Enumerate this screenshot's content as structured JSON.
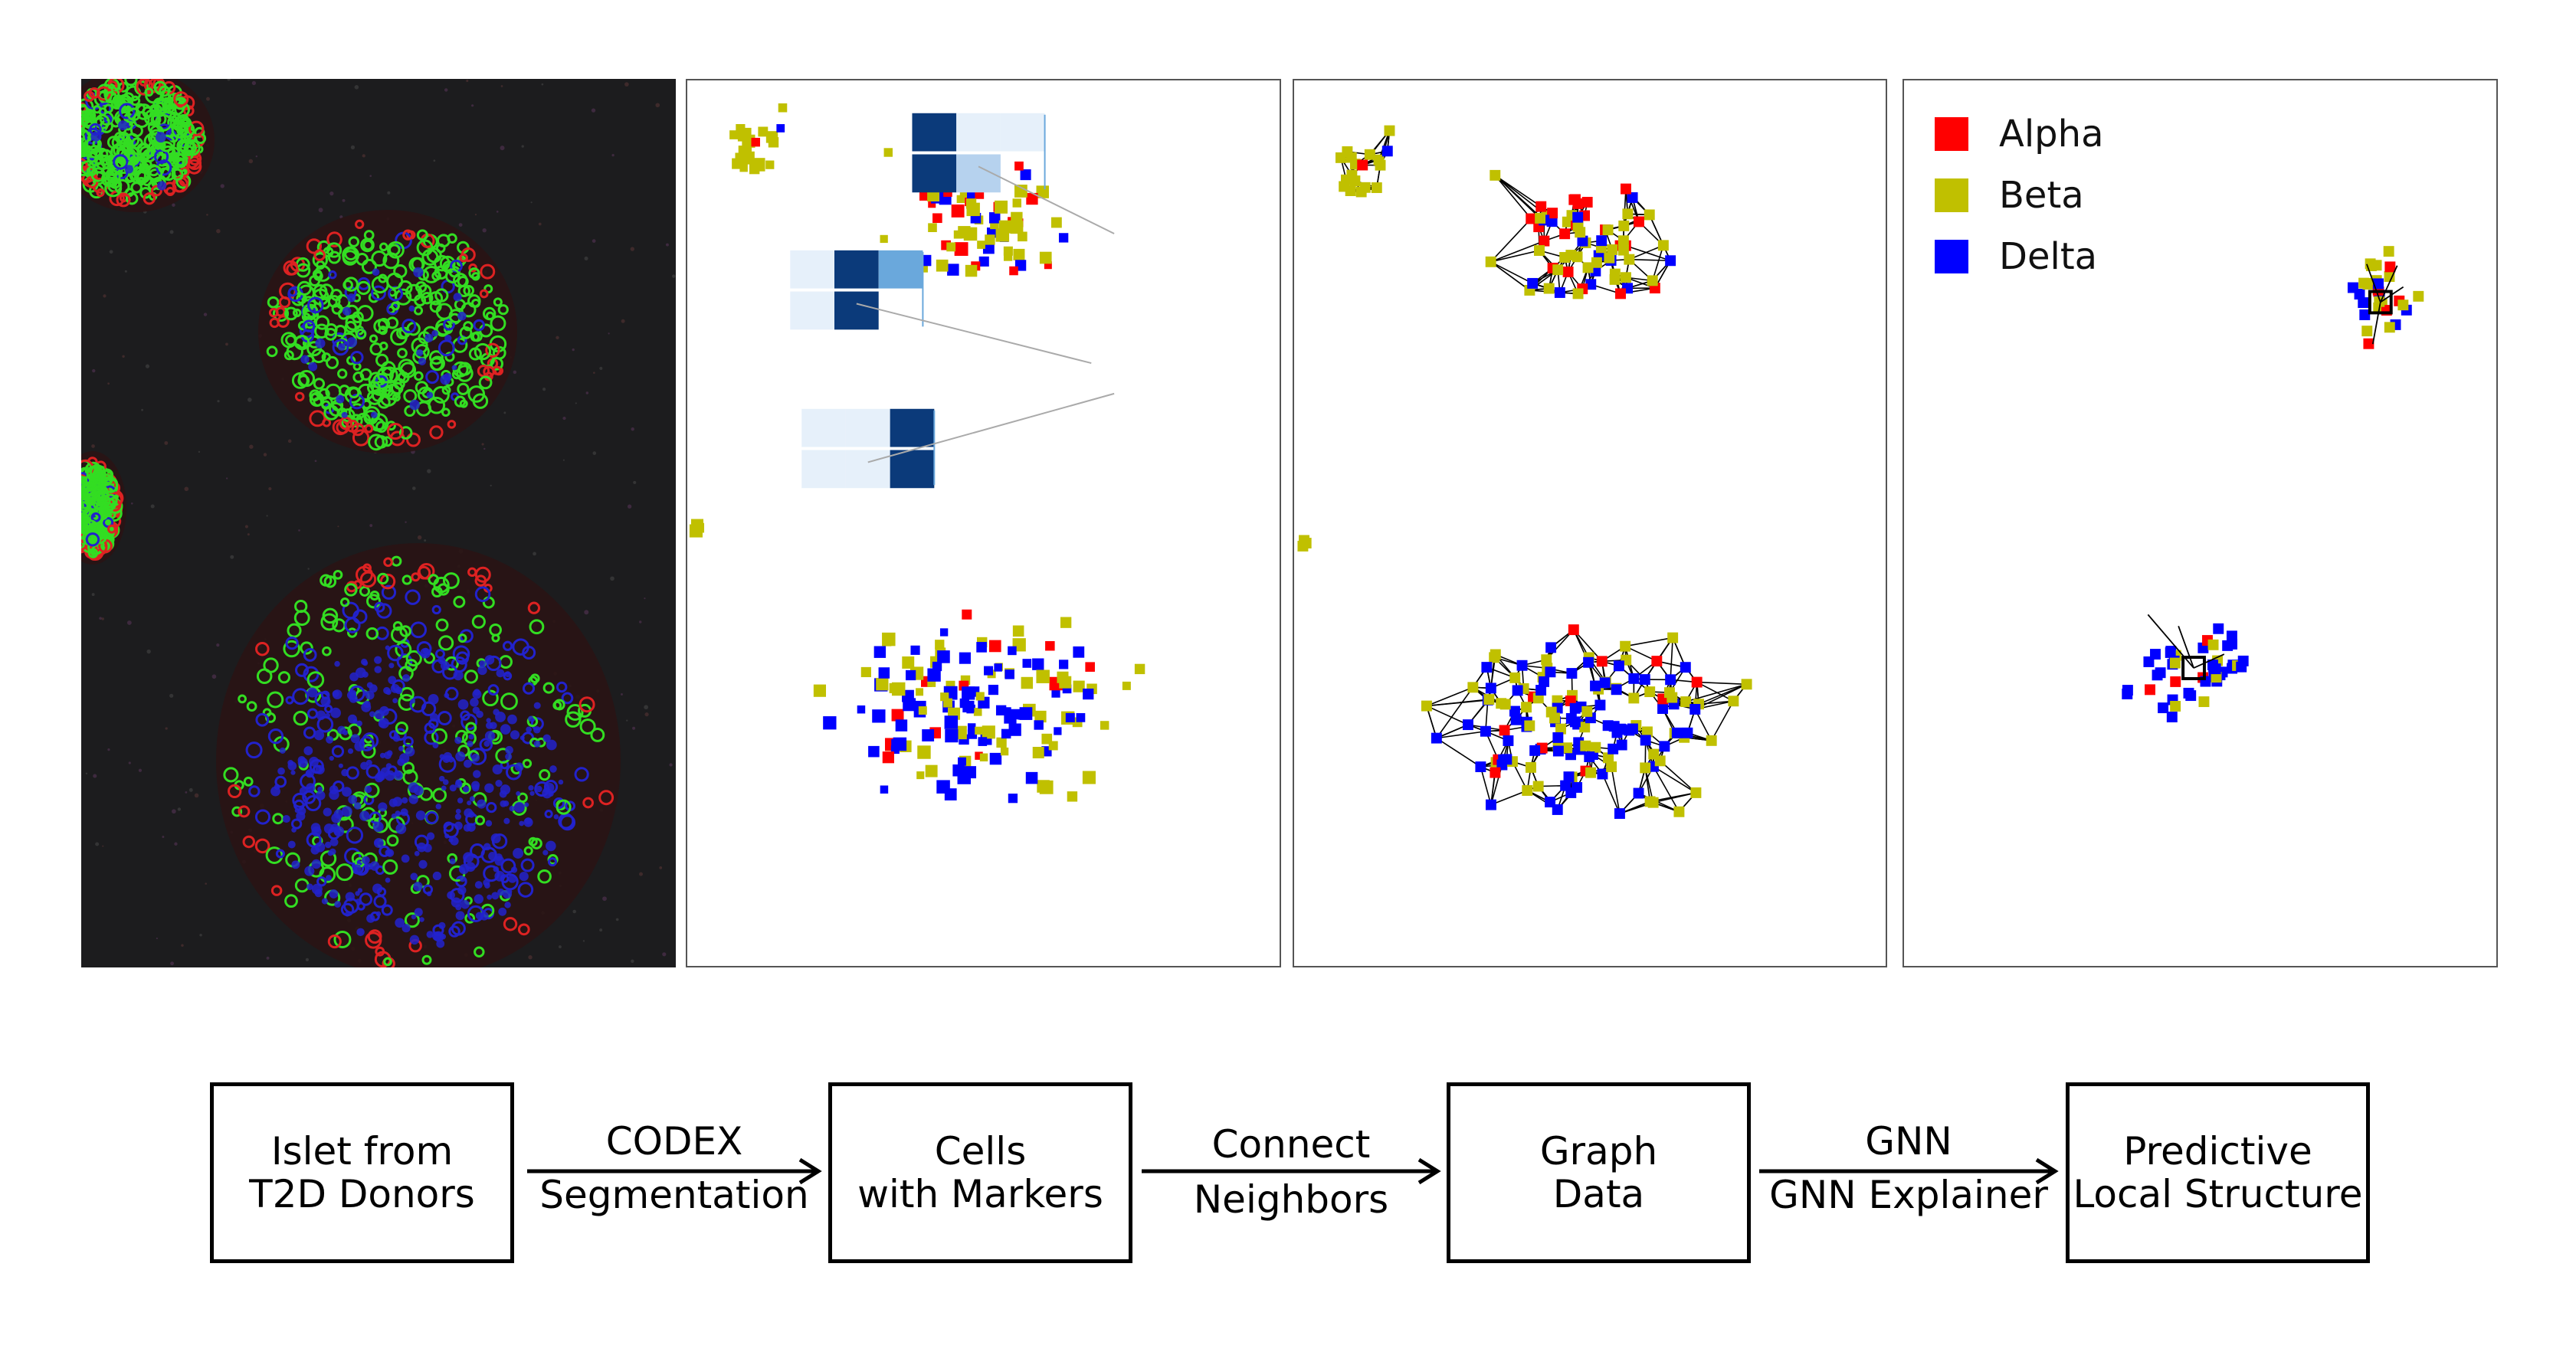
{
  "legend": {
    "items": [
      {
        "label": "Alpha",
        "color": "#ff0000"
      },
      {
        "label": "Beta",
        "color": "#c0c000"
      },
      {
        "label": "Delta",
        "color": "#0000ff"
      }
    ]
  },
  "pipeline": {
    "step1": {
      "line1": "Islet from",
      "line2": "T2D Donors"
    },
    "arrow1": {
      "line1": "CODEX",
      "line2": "Segmentation"
    },
    "step2": {
      "line1": "Cells",
      "line2": "with Markers"
    },
    "arrow2": {
      "line1": "Connect",
      "line2": "Neighbors"
    },
    "step3": {
      "line1": "Graph",
      "line2": "Data"
    },
    "arrow3": {
      "line1": "GNN",
      "line2": "GNN Explainer"
    },
    "step4": {
      "line1": "Predictive",
      "line2": "Local Structure"
    }
  },
  "colors": {
    "alpha": "#ff0000",
    "beta": "#c0c000",
    "delta": "#0000ff",
    "microscopy_green": "#33dd22",
    "microscopy_red": "#dd2222",
    "microscopy_blue": "#2222cc",
    "heatmap_dark": "#0b3a7a",
    "heatmap_mid": "#6aa8dc",
    "heatmap_light": "#e6f0fa"
  },
  "icons": {
    "microscopy": "fluorescence-image-icon",
    "cells": "cell-scatter-icon",
    "graph": "cell-graph-icon",
    "explainer": "explainer-subgraph-icon"
  }
}
